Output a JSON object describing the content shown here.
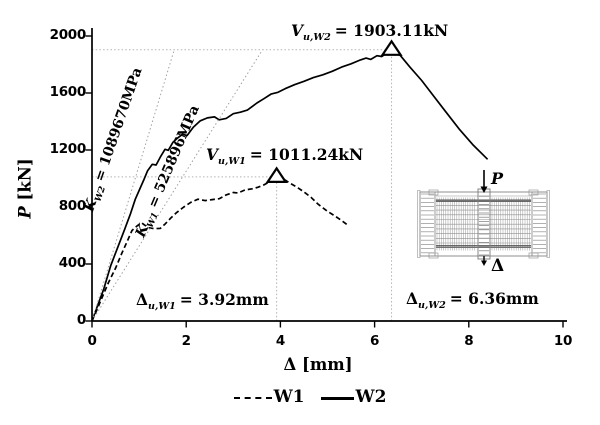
{
  "chart_data": {
    "type": "line",
    "title": "",
    "xlabel": "Δ [mm]",
    "ylabel": "P [kN]",
    "xlim": [
      0,
      10
    ],
    "ylim": [
      0,
      2000
    ],
    "xticks": [
      "0",
      "2",
      "4",
      "6",
      "8",
      "10"
    ],
    "yticks": [
      "0",
      "400",
      "800",
      "1200",
      "1600",
      "2000"
    ],
    "grid": false,
    "legend_position": "bottom-center",
    "series": [
      {
        "name": "W1",
        "style": "dashed",
        "color": "#000000",
        "points": [
          [
            0,
            0
          ],
          [
            0.1,
            75
          ],
          [
            0.22,
            170
          ],
          [
            0.35,
            270
          ],
          [
            0.5,
            370
          ],
          [
            0.64,
            480
          ],
          [
            0.75,
            560
          ],
          [
            0.85,
            635
          ],
          [
            0.95,
            665
          ],
          [
            1.05,
            690
          ],
          [
            1.12,
            672
          ],
          [
            1.2,
            655
          ],
          [
            1.32,
            648
          ],
          [
            1.45,
            650
          ],
          [
            1.55,
            680
          ],
          [
            1.68,
            725
          ],
          [
            1.8,
            762
          ],
          [
            1.95,
            800
          ],
          [
            2.1,
            833
          ],
          [
            2.25,
            855
          ],
          [
            2.4,
            845
          ],
          [
            2.55,
            852
          ],
          [
            2.7,
            858
          ],
          [
            2.85,
            885
          ],
          [
            3.0,
            902
          ],
          [
            3.1,
            898
          ],
          [
            3.25,
            920
          ],
          [
            3.4,
            928
          ],
          [
            3.52,
            938
          ],
          [
            3.65,
            955
          ],
          [
            3.78,
            978
          ],
          [
            3.92,
            1011.24
          ],
          [
            4.05,
            1000
          ],
          [
            4.2,
            968
          ],
          [
            4.35,
            940
          ],
          [
            4.5,
            905
          ],
          [
            4.65,
            868
          ],
          [
            4.8,
            820
          ],
          [
            5.0,
            770
          ],
          [
            5.15,
            738
          ],
          [
            5.3,
            705
          ],
          [
            5.45,
            668
          ]
        ]
      },
      {
        "name": "W2",
        "style": "solid",
        "color": "#000000",
        "points": [
          [
            0,
            0
          ],
          [
            0.12,
            110
          ],
          [
            0.25,
            225
          ],
          [
            0.4,
            390
          ],
          [
            0.55,
            520
          ],
          [
            0.7,
            650
          ],
          [
            0.82,
            755
          ],
          [
            0.92,
            855
          ],
          [
            1.02,
            930
          ],
          [
            1.1,
            990
          ],
          [
            1.18,
            1055
          ],
          [
            1.28,
            1100
          ],
          [
            1.36,
            1095
          ],
          [
            1.45,
            1150
          ],
          [
            1.55,
            1205
          ],
          [
            1.62,
            1198
          ],
          [
            1.72,
            1255
          ],
          [
            1.82,
            1285
          ],
          [
            1.92,
            1310
          ],
          [
            2.02,
            1302
          ],
          [
            2.15,
            1360
          ],
          [
            2.3,
            1405
          ],
          [
            2.45,
            1425
          ],
          [
            2.6,
            1432
          ],
          [
            2.7,
            1412
          ],
          [
            2.85,
            1422
          ],
          [
            3.0,
            1455
          ],
          [
            3.15,
            1465
          ],
          [
            3.3,
            1480
          ],
          [
            3.5,
            1530
          ],
          [
            3.65,
            1560
          ],
          [
            3.8,
            1592
          ],
          [
            3.95,
            1605
          ],
          [
            4.1,
            1630
          ],
          [
            4.3,
            1658
          ],
          [
            4.5,
            1682
          ],
          [
            4.7,
            1708
          ],
          [
            4.9,
            1728
          ],
          [
            5.1,
            1752
          ],
          [
            5.3,
            1782
          ],
          [
            5.5,
            1805
          ],
          [
            5.7,
            1832
          ],
          [
            5.82,
            1845
          ],
          [
            5.92,
            1836
          ],
          [
            6.05,
            1862
          ],
          [
            6.15,
            1856
          ],
          [
            6.36,
            1903.11
          ],
          [
            6.55,
            1862
          ],
          [
            6.75,
            1782
          ],
          [
            7.0,
            1688
          ],
          [
            7.25,
            1580
          ],
          [
            7.5,
            1472
          ],
          [
            7.8,
            1345
          ],
          [
            8.1,
            1232
          ],
          [
            8.4,
            1135
          ]
        ]
      },
      {
        "name": "K_W2 stiffness line",
        "style": "dotted",
        "color": "#a0a0a0",
        "points": [
          [
            0,
            0
          ],
          [
            1.746,
            1903.11
          ]
        ]
      },
      {
        "name": "K_W1 stiffness line",
        "style": "dotted",
        "color": "#a0a0a0",
        "points": [
          [
            0,
            0
          ],
          [
            3.619,
            1903.11
          ]
        ]
      }
    ],
    "peak_markers": [
      {
        "series": "W1",
        "x": 3.92,
        "y": 1011.24
      },
      {
        "series": "W2",
        "x": 6.36,
        "y": 1903.11
      }
    ],
    "guide_lines": [
      {
        "type": "h",
        "y": 1903.11,
        "x1": 0,
        "x2": 6.36
      },
      {
        "type": "h",
        "y": 1011.24,
        "x1": 0,
        "x2": 3.92
      },
      {
        "type": "v",
        "x": 3.92,
        "y1": 0,
        "y2": 1011.24
      },
      {
        "type": "v",
        "x": 6.36,
        "y1": 0,
        "y2": 1903.11
      }
    ]
  },
  "axes": {
    "y_symbol": "P",
    "y_units": " [kN]",
    "x_symbol": "Δ",
    "x_units": " [mm]"
  },
  "annotations": {
    "vu_w2": {
      "base": "V",
      "sub": "u,W2",
      "value": "= 1903.11kN"
    },
    "vu_w1": {
      "base": "V",
      "sub": "u,W1",
      "value": "= 1011.24kN"
    },
    "du_w1": {
      "base": "Δ",
      "sub": "u,W1",
      "value": "= 3.92mm"
    },
    "du_w2": {
      "base": "Δ",
      "sub": "u,W2",
      "value": "= 6.36mm"
    },
    "k_w2": {
      "base": "K",
      "sub": "W2",
      "value": "= 1089670MPa"
    },
    "k_w1": {
      "base": "K",
      "sub": "W1",
      "value": "= 525896MPa"
    }
  },
  "inset": {
    "load_label": "P",
    "disp_label": "Δ"
  },
  "legend": [
    {
      "label": "W1",
      "style": "dashed"
    },
    {
      "label": "W2",
      "style": "solid"
    }
  ]
}
